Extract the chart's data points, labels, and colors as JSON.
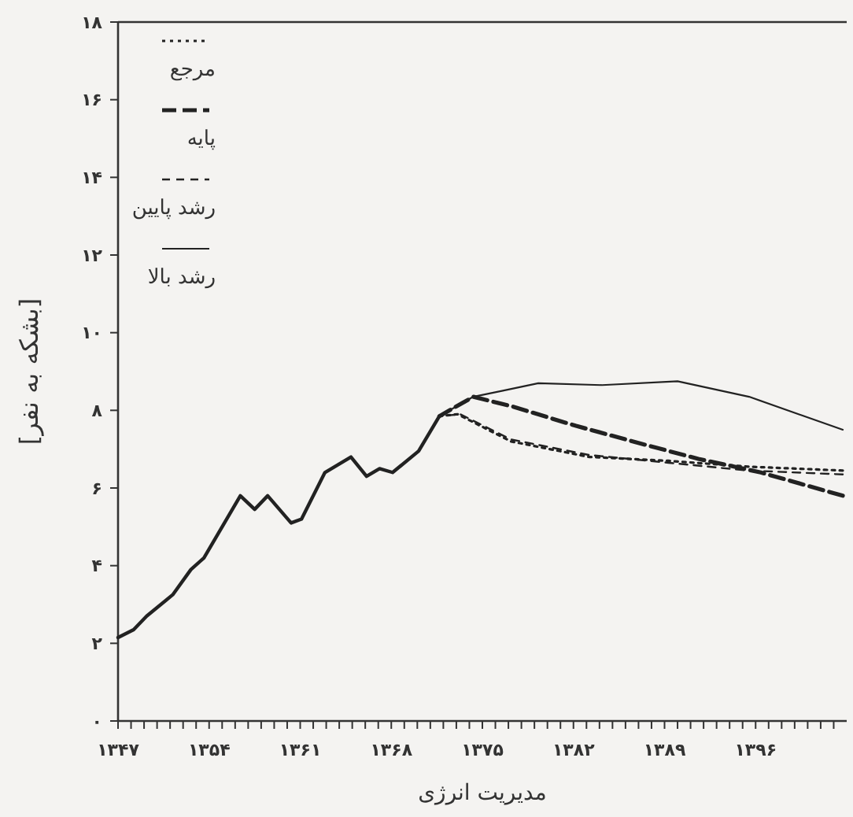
{
  "chart_data": {
    "type": "line",
    "xlabel": "مدیریت انرژی",
    "ylabel": "[بشکه به نفر]",
    "xlim": [
      1347,
      1403
    ],
    "ylim": [
      0,
      18
    ],
    "xticks": [
      {
        "value": 1347,
        "label": "۱۳۴۷"
      },
      {
        "value": 1348,
        "label": null
      },
      {
        "value": 1349,
        "label": null
      },
      {
        "value": 1350,
        "label": null
      },
      {
        "value": 1351,
        "label": null
      },
      {
        "value": 1352,
        "label": null
      },
      {
        "value": 1353,
        "label": null
      },
      {
        "value": 1354,
        "label": "۱۳۵۴"
      },
      {
        "value": 1355,
        "label": null
      },
      {
        "value": 1356,
        "label": null
      },
      {
        "value": 1357,
        "label": null
      },
      {
        "value": 1358,
        "label": null
      },
      {
        "value": 1359,
        "label": null
      },
      {
        "value": 1360,
        "label": null
      },
      {
        "value": 1361,
        "label": "۱۳۶۱"
      },
      {
        "value": 1362,
        "label": null
      },
      {
        "value": 1363,
        "label": null
      },
      {
        "value": 1364,
        "label": null
      },
      {
        "value": 1365,
        "label": null
      },
      {
        "value": 1366,
        "label": null
      },
      {
        "value": 1367,
        "label": null
      },
      {
        "value": 1368,
        "label": "۱۳۶۸"
      },
      {
        "value": 1369,
        "label": null
      },
      {
        "value": 1370,
        "label": null
      },
      {
        "value": 1371,
        "label": null
      },
      {
        "value": 1372,
        "label": null
      },
      {
        "value": 1373,
        "label": null
      },
      {
        "value": 1374,
        "label": null
      },
      {
        "value": 1375,
        "label": "۱۳۷۵"
      },
      {
        "value": 1376,
        "label": null
      },
      {
        "value": 1377,
        "label": null
      },
      {
        "value": 1378,
        "label": null
      },
      {
        "value": 1379,
        "label": null
      },
      {
        "value": 1380,
        "label": null
      },
      {
        "value": 1381,
        "label": null
      },
      {
        "value": 1382,
        "label": "۱۳۸۲"
      },
      {
        "value": 1383,
        "label": null
      },
      {
        "value": 1384,
        "label": null
      },
      {
        "value": 1385,
        "label": null
      },
      {
        "value": 1386,
        "label": null
      },
      {
        "value": 1387,
        "label": null
      },
      {
        "value": 1388,
        "label": null
      },
      {
        "value": 1389,
        "label": "۱۳۸۹"
      },
      {
        "value": 1390,
        "label": null
      },
      {
        "value": 1391,
        "label": null
      },
      {
        "value": 1392,
        "label": null
      },
      {
        "value": 1393,
        "label": null
      },
      {
        "value": 1394,
        "label": null
      },
      {
        "value": 1395,
        "label": null
      },
      {
        "value": 1396,
        "label": "۱۳۹۶"
      },
      {
        "value": 1397,
        "label": null
      },
      {
        "value": 1398,
        "label": null
      },
      {
        "value": 1399,
        "label": null
      },
      {
        "value": 1400,
        "label": null
      },
      {
        "value": 1401,
        "label": null
      },
      {
        "value": 1402,
        "label": null
      }
    ],
    "yticks": [
      {
        "value": 0,
        "label": "۰"
      },
      {
        "value": 2,
        "label": "۲"
      },
      {
        "value": 4,
        "label": "۴"
      },
      {
        "value": 6,
        "label": "۶"
      },
      {
        "value": 8,
        "label": "۸"
      },
      {
        "value": 10,
        "label": "۱۰"
      },
      {
        "value": 12,
        "label": "۱۲"
      },
      {
        "value": 14,
        "label": "۱۴"
      },
      {
        "value": 16,
        "label": "۱۶"
      },
      {
        "value": 18,
        "label": "۱۸"
      }
    ],
    "grid": false,
    "legend": "top left",
    "marker": "none",
    "series": [
      {
        "color": "#222222",
        "line_style": "solid",
        "x": [
          1347,
          1348.2,
          1349.2,
          1351.2,
          1352.6,
          1353.6,
          1356.4,
          1357.5,
          1358.5,
          1360.3,
          1361.1,
          1362.9,
          1364.9,
          1366.1,
          1367.1,
          1368.1,
          1370.1,
          1371.7
        ],
        "values": [
          2.15,
          2.35,
          2.7,
          3.25,
          3.9,
          4.2,
          5.8,
          5.45,
          5.8,
          5.1,
          5.2,
          6.4,
          6.8,
          6.3,
          6.5,
          6.4,
          6.95,
          7.85
        ]
      },
      {
        "name": "مرجع",
        "color": "#222222",
        "line_style": "dotted",
        "x": [
          1371.7,
          1373.1,
          1377.2,
          1383.2,
          1389.3,
          1395.4,
          1402.7
        ],
        "values": [
          7.85,
          7.9,
          7.2,
          6.8,
          6.7,
          6.55,
          6.45
        ]
      },
      {
        "name": "پایه",
        "color": "#222222",
        "line_style": "dashed",
        "x": [
          1371.7,
          1374.3,
          1377.3,
          1382.2,
          1387.1,
          1391.6,
          1396.4,
          1402.7
        ],
        "values": [
          7.85,
          8.35,
          8.1,
          7.6,
          7.15,
          6.75,
          6.4,
          5.8
        ]
      },
      {
        "name": "رشد پایین",
        "color": "#222222",
        "line_style": "dashed",
        "x": [
          1371.7,
          1373.3,
          1377.2,
          1383.2,
          1389.3,
          1395.4,
          1402.7
        ],
        "values": [
          7.85,
          7.9,
          7.25,
          6.85,
          6.65,
          6.45,
          6.35
        ]
      },
      {
        "name": "رشد بالا",
        "color": "#222222",
        "line_style": "solid",
        "x": [
          1371.7,
          1374.3,
          1376.5,
          1379.3,
          1384.2,
          1390,
          1395.5,
          1402.7
        ],
        "values": [
          7.85,
          8.35,
          8.5,
          8.7,
          8.65,
          8.75,
          8.35,
          7.5
        ]
      }
    ]
  }
}
